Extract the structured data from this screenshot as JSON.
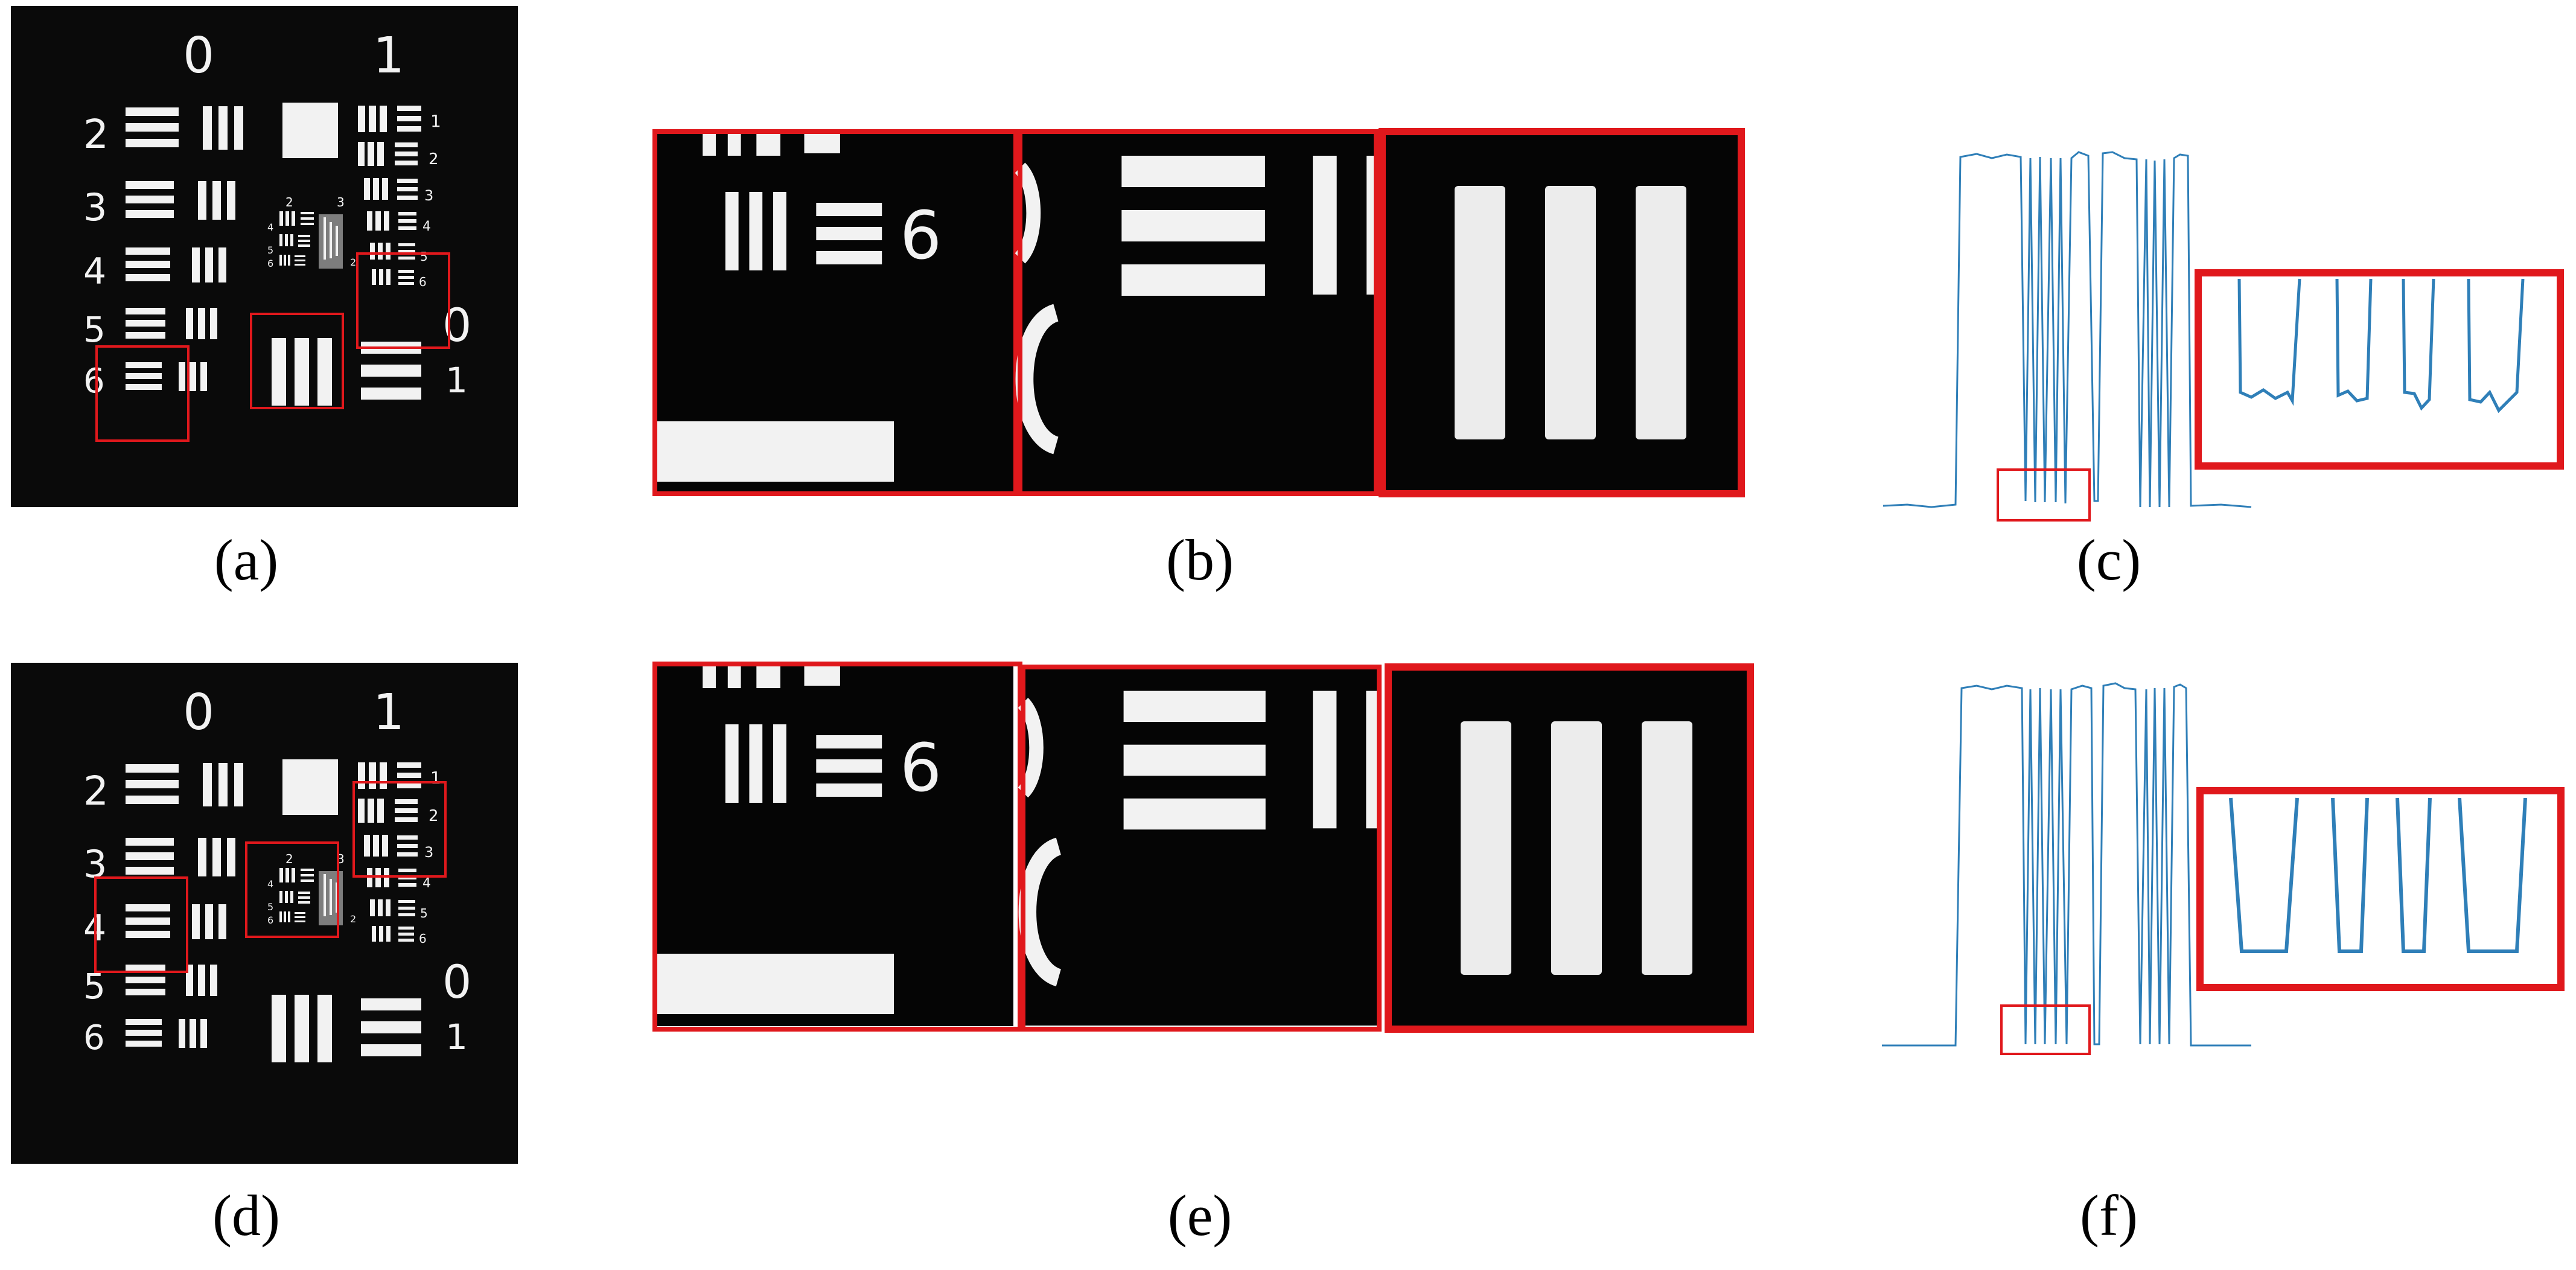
{
  "figure": {
    "panels": [
      {
        "id": "a",
        "label": "(a)"
      },
      {
        "id": "b",
        "label": "(b)"
      },
      {
        "id": "c",
        "label": "(c)"
      },
      {
        "id": "d",
        "label": "(d)"
      },
      {
        "id": "e",
        "label": "(e)"
      },
      {
        "id": "f",
        "label": "(f)"
      }
    ],
    "target_numerals": {
      "group_top_left": "0",
      "group_top_right": "1",
      "group_bottom_right": "0",
      "group_bottom_right_small": "1",
      "left_column": [
        "2",
        "3",
        "4",
        "5",
        "6"
      ],
      "right_column": [
        "1",
        "2",
        "3",
        "4",
        "5",
        "6"
      ],
      "inner_small": [
        "2",
        "3",
        "4",
        "5",
        "6"
      ],
      "crop_number": "6"
    },
    "colors": {
      "background": "#000000",
      "bars": "#f2f2f2",
      "highlight_box": "#e0181c",
      "profile_line": "#2f7fb8"
    }
  }
}
